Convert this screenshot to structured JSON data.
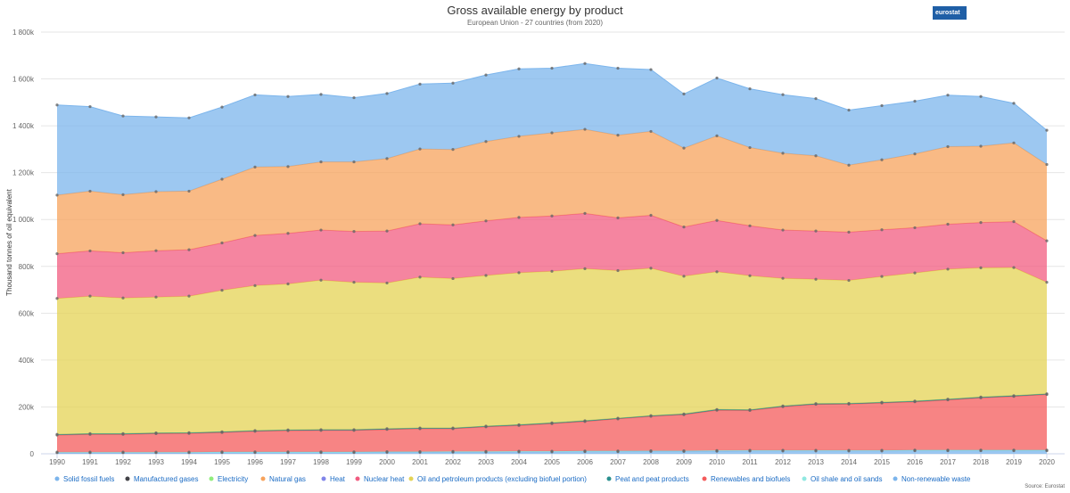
{
  "header": {
    "title": "Gross available energy by product",
    "subtitle": "European Union - 27 countries (from 2020)",
    "logo_text": "eurostat",
    "source": "Source: Eurostat"
  },
  "chart_data": {
    "type": "area",
    "stacked": true,
    "ylabel": "Thousand tonnes of oil equivalent",
    "xlabel": "",
    "ylim": [
      0,
      1800000
    ],
    "y_ticks": [
      "0",
      "200k",
      "400k",
      "600k",
      "800k",
      "1 000k",
      "1 200k",
      "1 400k",
      "1 600k",
      "1 800k"
    ],
    "grid": true,
    "legend_position": "bottom",
    "categories": [
      "1990",
      "1991",
      "1992",
      "1993",
      "1994",
      "1995",
      "1996",
      "1997",
      "1998",
      "1999",
      "2000",
      "2001",
      "2002",
      "2003",
      "2004",
      "2005",
      "2006",
      "2007",
      "2008",
      "2009",
      "2010",
      "2011",
      "2012",
      "2013",
      "2014",
      "2015",
      "2016",
      "2017",
      "2018",
      "2019",
      "2020"
    ],
    "legend": [
      {
        "name": "Solid fossil fuels",
        "color": "#7cb5ec"
      },
      {
        "name": "Manufactured gases",
        "color": "#434348"
      },
      {
        "name": "Electricity",
        "color": "#90ed7d"
      },
      {
        "name": "Natural gas",
        "color": "#f7a35c"
      },
      {
        "name": "Heat",
        "color": "#8085e9"
      },
      {
        "name": "Nuclear heat",
        "color": "#f15c80"
      },
      {
        "name": "Oil and petroleum products (excluding biofuel portion)",
        "color": "#e4d354"
      },
      {
        "name": "Peat and peat products",
        "color": "#2b908f"
      },
      {
        "name": "Renewables and biofuels",
        "color": "#f45b5b"
      },
      {
        "name": "Oil shale and oil sands",
        "color": "#91e8e1"
      },
      {
        "name": "Non-renewable waste",
        "color": "#7cb5ec"
      }
    ],
    "series": [
      {
        "name": "Non-renewable waste",
        "color": "#7cb5ec",
        "values": [
          4000,
          4000,
          4000,
          4000,
          4000,
          5000,
          5000,
          5000,
          5000,
          5000,
          6000,
          6000,
          7000,
          7000,
          8000,
          8000,
          9000,
          9000,
          10000,
          10000,
          11000,
          12000,
          12000,
          12000,
          12000,
          12000,
          13000,
          13000,
          13000,
          13000,
          13000
        ]
      },
      {
        "name": "Oil shale and oil sands",
        "color": "#91e8e1",
        "values": [
          3000,
          3000,
          3000,
          3000,
          3000,
          3000,
          3000,
          3000,
          3000,
          3000,
          3000,
          3000,
          3000,
          3000,
          3000,
          3000,
          3000,
          3000,
          3000,
          3000,
          3000,
          3000,
          3000,
          3000,
          3000,
          3000,
          3000,
          3000,
          3000,
          3000,
          3000
        ]
      },
      {
        "name": "Renewables and biofuels",
        "color": "#f45b5b",
        "values": [
          73000,
          76000,
          76000,
          79000,
          80000,
          83000,
          88000,
          91000,
          92000,
          92000,
          95000,
          98000,
          97000,
          105000,
          110000,
          118000,
          126000,
          137000,
          147000,
          154000,
          172000,
          170000,
          186000,
          196000,
          197000,
          202000,
          206000,
          214000,
          223000,
          229000,
          237000
        ]
      },
      {
        "name": "Peat and peat products",
        "color": "#2b908f",
        "values": [
          3000,
          3000,
          3000,
          3000,
          3000,
          3000,
          3000,
          3000,
          3000,
          3000,
          3000,
          3000,
          3000,
          3000,
          3000,
          3000,
          3000,
          3000,
          3000,
          3000,
          3000,
          3000,
          3000,
          3000,
          3000,
          3000,
          3000,
          3000,
          3000,
          3000,
          3000
        ]
      },
      {
        "name": "Oil and petroleum products (excluding biofuel portion)",
        "color": "#e4d354",
        "values": [
          580000,
          587000,
          579000,
          580000,
          583000,
          604000,
          619000,
          623000,
          638000,
          629000,
          622000,
          644000,
          638000,
          643000,
          649000,
          647000,
          649000,
          630000,
          629000,
          588000,
          588000,
          572000,
          545000,
          531000,
          525000,
          537000,
          547000,
          555000,
          552000,
          547000,
          476000
        ]
      },
      {
        "name": "Nuclear heat",
        "color": "#f15c80",
        "values": [
          191000,
          193000,
          193000,
          198000,
          198000,
          202000,
          214000,
          216000,
          214000,
          217000,
          222000,
          228000,
          229000,
          233000,
          236000,
          236000,
          236000,
          225000,
          226000,
          210000,
          219000,
          213000,
          206000,
          206000,
          206000,
          199000,
          193000,
          192000,
          193000,
          196000,
          177000
        ]
      },
      {
        "name": "Heat",
        "color": "#8085e9",
        "values": [
          0,
          0,
          0,
          0,
          0,
          0,
          0,
          0,
          0,
          0,
          0,
          0,
          0,
          0,
          0,
          0,
          0,
          0,
          0,
          0,
          0,
          0,
          0,
          0,
          0,
          0,
          0,
          0,
          0,
          0,
          0
        ]
      },
      {
        "name": "Natural gas",
        "color": "#f7a35c",
        "values": [
          250000,
          255000,
          248000,
          252000,
          250000,
          272000,
          292000,
          285000,
          291000,
          297000,
          309000,
          319000,
          322000,
          339000,
          346000,
          355000,
          359000,
          353000,
          358000,
          337000,
          361000,
          334000,
          328000,
          321000,
          286000,
          299000,
          315000,
          331000,
          326000,
          336000,
          326000
        ]
      },
      {
        "name": "Electricity",
        "color": "#90ed7d",
        "values": [
          0,
          0,
          0,
          0,
          0,
          0,
          0,
          0,
          0,
          0,
          0,
          0,
          0,
          0,
          0,
          0,
          0,
          0,
          0,
          0,
          0,
          0,
          0,
          0,
          0,
          0,
          0,
          0,
          0,
          0,
          0
        ]
      },
      {
        "name": "Manufactured gases",
        "color": "#434348",
        "values": [
          0,
          0,
          0,
          0,
          0,
          0,
          0,
          0,
          0,
          0,
          0,
          0,
          0,
          0,
          0,
          0,
          0,
          0,
          0,
          0,
          0,
          0,
          0,
          0,
          0,
          0,
          0,
          0,
          0,
          0,
          0
        ]
      },
      {
        "name": "Solid fossil fuels",
        "color": "#7cb5ec",
        "values": [
          385000,
          361000,
          336000,
          319000,
          313000,
          308000,
          308000,
          299000,
          288000,
          274000,
          278000,
          277000,
          283000,
          284000,
          288000,
          276000,
          281000,
          286000,
          264000,
          231000,
          247000,
          251000,
          250000,
          244000,
          235000,
          231000,
          225000,
          220000,
          212000,
          169000,
          146000
        ]
      }
    ]
  }
}
